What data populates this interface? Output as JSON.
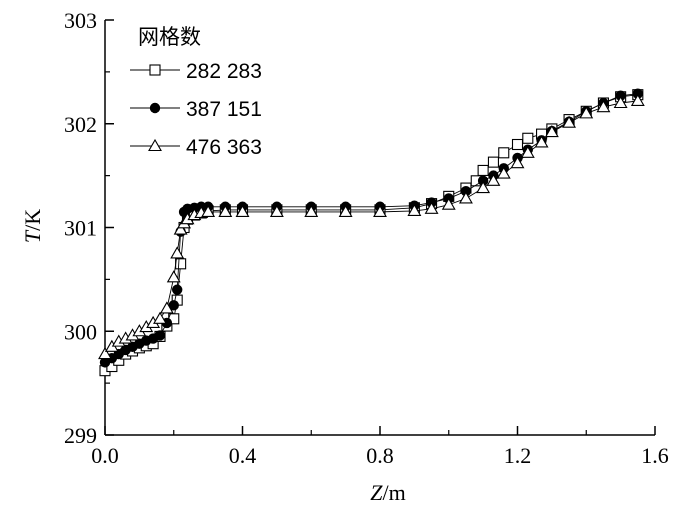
{
  "chart_data": {
    "type": "line",
    "title": "",
    "xlabel_var": "Z",
    "xlabel_unit": "/m",
    "ylabel_var": "T",
    "ylabel_unit": "/K",
    "xlim": [
      0.0,
      1.6
    ],
    "ylim": [
      299,
      303
    ],
    "xticks": [
      "0.0",
      "0.4",
      "0.8",
      "1.2",
      "1.6"
    ],
    "yticks": [
      "299",
      "300",
      "301",
      "302",
      "303"
    ],
    "grid": false,
    "legend": {
      "title": "网格数",
      "placement": "top-left"
    },
    "series": [
      {
        "name": "282 283",
        "marker": "square-open",
        "x": [
          0.0,
          0.02,
          0.04,
          0.06,
          0.08,
          0.1,
          0.12,
          0.14,
          0.16,
          0.18,
          0.2,
          0.21,
          0.22,
          0.23,
          0.24,
          0.26,
          0.28,
          0.3,
          0.35,
          0.4,
          0.5,
          0.6,
          0.7,
          0.8,
          0.9,
          0.95,
          1.0,
          1.05,
          1.08,
          1.1,
          1.13,
          1.16,
          1.2,
          1.23,
          1.27,
          1.3,
          1.35,
          1.4,
          1.45,
          1.5,
          1.55
        ],
        "y": [
          299.62,
          299.66,
          299.72,
          299.78,
          299.81,
          299.84,
          299.86,
          299.88,
          299.95,
          300.05,
          300.12,
          300.3,
          300.65,
          301.0,
          301.08,
          301.12,
          301.14,
          301.16,
          301.17,
          301.17,
          301.17,
          301.17,
          301.17,
          301.17,
          301.19,
          301.23,
          301.3,
          301.38,
          301.45,
          301.55,
          301.63,
          301.72,
          301.8,
          301.86,
          301.9,
          301.95,
          302.04,
          302.12,
          302.2,
          302.26,
          302.28
        ]
      },
      {
        "name": "387 151",
        "marker": "circle-filled",
        "x": [
          0.0,
          0.02,
          0.04,
          0.06,
          0.08,
          0.1,
          0.12,
          0.14,
          0.16,
          0.18,
          0.2,
          0.21,
          0.22,
          0.23,
          0.24,
          0.26,
          0.28,
          0.3,
          0.35,
          0.4,
          0.5,
          0.6,
          0.7,
          0.8,
          0.9,
          0.95,
          1.0,
          1.05,
          1.1,
          1.13,
          1.16,
          1.2,
          1.23,
          1.27,
          1.3,
          1.35,
          1.4,
          1.45,
          1.5,
          1.55
        ],
        "y": [
          299.7,
          299.74,
          299.78,
          299.82,
          299.85,
          299.88,
          299.91,
          299.93,
          299.96,
          300.08,
          300.25,
          300.4,
          300.96,
          301.15,
          301.18,
          301.19,
          301.2,
          301.2,
          301.2,
          301.2,
          301.2,
          301.2,
          301.2,
          301.2,
          301.21,
          301.24,
          301.28,
          301.35,
          301.45,
          301.5,
          301.57,
          301.67,
          301.75,
          301.84,
          301.93,
          302.02,
          302.12,
          302.2,
          302.27,
          302.29
        ]
      },
      {
        "name": "476 363",
        "marker": "triangle-open",
        "x": [
          0.0,
          0.02,
          0.04,
          0.06,
          0.08,
          0.1,
          0.12,
          0.14,
          0.16,
          0.18,
          0.2,
          0.21,
          0.22,
          0.23,
          0.24,
          0.26,
          0.28,
          0.3,
          0.35,
          0.4,
          0.5,
          0.6,
          0.7,
          0.8,
          0.9,
          0.95,
          1.0,
          1.05,
          1.1,
          1.13,
          1.16,
          1.2,
          1.23,
          1.27,
          1.3,
          1.35,
          1.4,
          1.45,
          1.5,
          1.55
        ],
        "y": [
          299.78,
          299.85,
          299.9,
          299.93,
          299.96,
          300.0,
          300.04,
          300.08,
          300.12,
          300.22,
          300.52,
          300.75,
          300.98,
          301.04,
          301.08,
          301.12,
          301.14,
          301.15,
          301.15,
          301.15,
          301.15,
          301.15,
          301.15,
          301.15,
          301.16,
          301.18,
          301.22,
          301.28,
          301.38,
          301.45,
          301.52,
          301.62,
          301.72,
          301.82,
          301.92,
          302.01,
          302.1,
          302.16,
          302.2,
          302.22
        ]
      }
    ]
  }
}
